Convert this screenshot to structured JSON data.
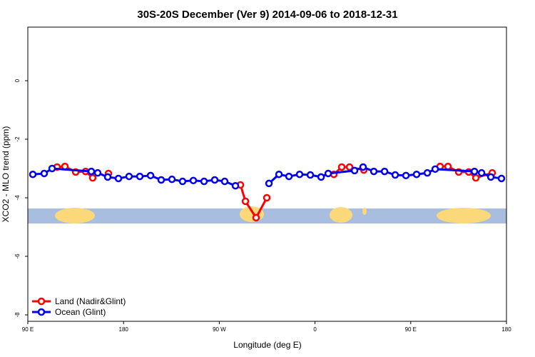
{
  "chart_data": {
    "type": "line",
    "title": "30S-20S December (Ver 9)   2014-09-06 to 2018-12-31",
    "x_label": "Longitude (deg E)",
    "y_label": "XCO2 - MLO trend (ppm)",
    "xlim": [
      90,
      540
    ],
    "ylim": [
      -8.22,
      1.83
    ],
    "xticks": [
      {
        "value": 90,
        "label": "90 E"
      },
      {
        "value": 180,
        "label": "180"
      },
      {
        "value": 270,
        "label": "90 W"
      },
      {
        "value": 360,
        "label": "0"
      },
      {
        "value": 450,
        "label": "90 E"
      },
      {
        "value": 540,
        "label": "180"
      }
    ],
    "yticks": [
      0,
      -2,
      -4,
      -6,
      -8
    ],
    "legend": "bottom-left",
    "series": [
      {
        "name": "Land (Nadir&Glint)",
        "color": "#ff0000",
        "x": [
          117.5,
          124.9,
          135.0,
          144.3,
          151.0,
          null,
          165.8,
          null,
          289.9,
          294.6,
          304.6,
          314.7,
          null,
          377.7,
          385.1,
          392.5,
          405.9,
          null,
          477.6,
          485.0,
          495.1,
          504.5,
          511.2,
          526.6
        ],
        "values": [
          -2.95,
          -2.93,
          -3.12,
          -3.1,
          -3.32,
          null,
          -3.17,
          null,
          -3.56,
          -4.12,
          -4.68,
          -4.0,
          null,
          -3.2,
          -2.95,
          -2.95,
          -3.05,
          null,
          -2.93,
          -2.93,
          -3.12,
          -3.12,
          -3.32,
          -3.15
        ]
      },
      {
        "name": "Ocean (Glint)",
        "color": "#0000ee",
        "x": [
          94.7,
          105.4,
          112.8,
          149.7,
          155.7,
          165.1,
          175.2,
          185.2,
          195.3,
          205.4,
          215.4,
          225.5,
          235.5,
          245.6,
          255.7,
          265.7,
          275.1,
          285.2,
          null,
          316.7,
          326.1,
          335.5,
          345.5,
          355.6,
          365.7,
          372.4,
          397.2,
          405.2,
          415.3,
          425.4,
          435.4,
          445.5,
          455.5,
          465.6,
          473.0,
          509.9,
          516.6,
          525.3,
          535.3
        ],
        "values": [
          -3.2,
          -3.17,
          -3.0,
          -3.1,
          -3.15,
          -3.29,
          -3.34,
          -3.27,
          -3.27,
          -3.24,
          -3.39,
          -3.37,
          -3.44,
          -3.41,
          -3.44,
          -3.39,
          -3.44,
          -3.59,
          null,
          -3.51,
          -3.2,
          -3.27,
          -3.2,
          -3.22,
          -3.29,
          -3.17,
          -3.07,
          -2.95,
          -3.1,
          -3.1,
          -3.22,
          -3.24,
          -3.2,
          -3.15,
          -3.02,
          -3.1,
          -3.15,
          -3.29,
          -3.34
        ]
      }
    ]
  }
}
